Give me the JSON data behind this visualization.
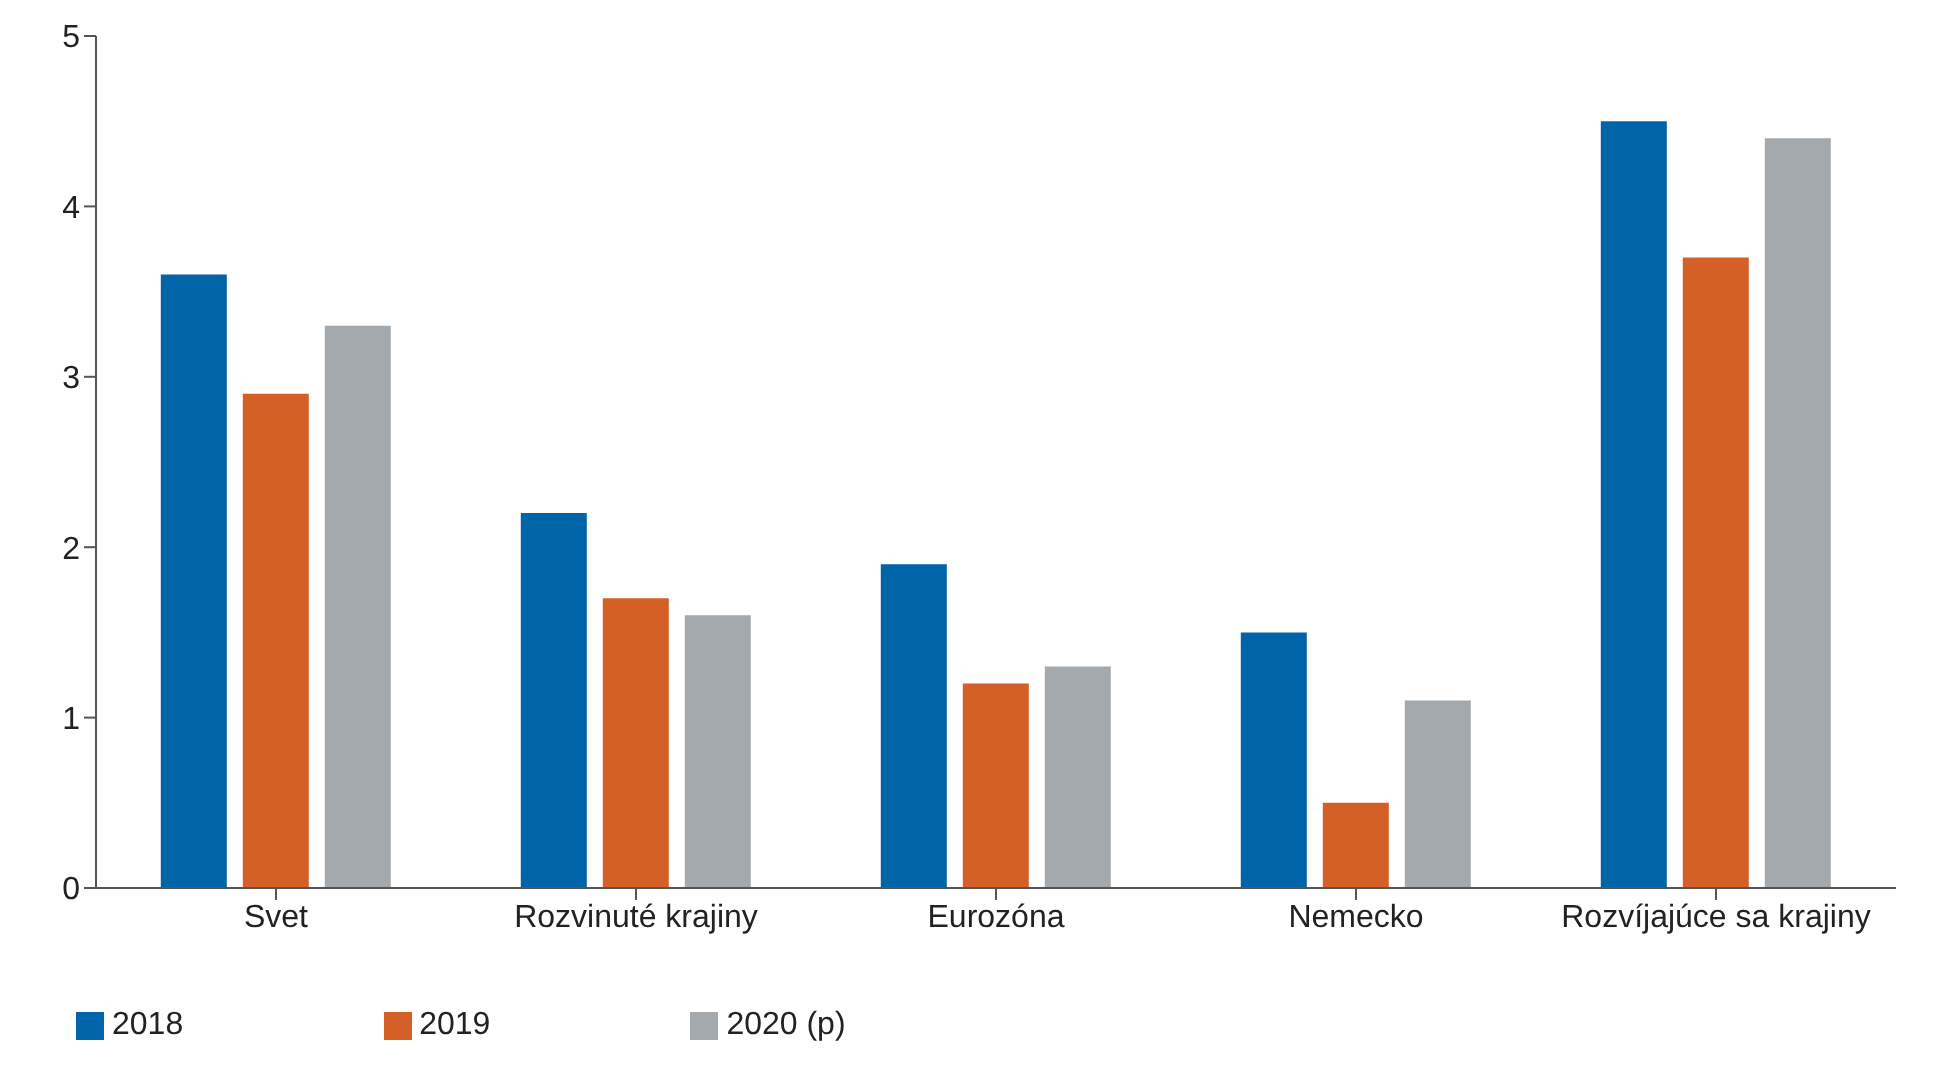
{
  "chart_data": {
    "type": "bar",
    "categories": [
      "Svet",
      "Rozvinuté krajiny",
      "Eurozóna",
      "Nemecko",
      "Rozvíjajúce sa krajiny"
    ],
    "series": [
      {
        "name": "2018",
        "color": "#0064a8",
        "values": [
          3.6,
          2.2,
          1.9,
          1.5,
          4.5
        ]
      },
      {
        "name": "2019",
        "color": "#d45f27",
        "values": [
          2.9,
          1.7,
          1.2,
          0.5,
          3.7
        ]
      },
      {
        "name": "2020 (p)",
        "color": "#a3a9ad",
        "values": [
          3.3,
          1.6,
          1.3,
          1.1,
          4.4
        ]
      }
    ],
    "ylim": [
      0,
      5
    ],
    "yticks": [
      0,
      1,
      2,
      3,
      4,
      5
    ],
    "grid": false,
    "legend": "bottom left"
  }
}
